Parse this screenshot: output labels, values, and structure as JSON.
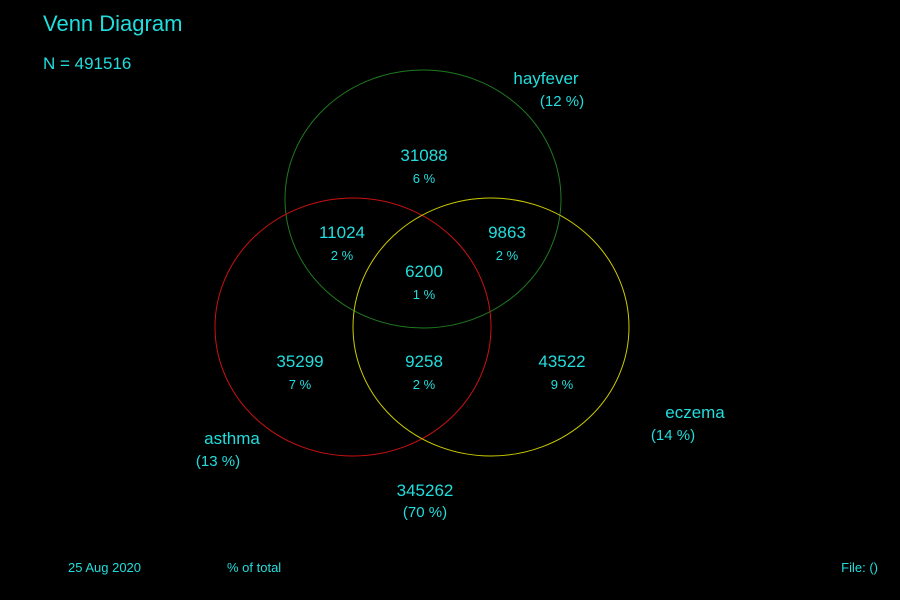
{
  "title": "Venn Diagram",
  "total": "N = 491516",
  "colors": {
    "text": "#22dddd",
    "background": "#000000",
    "hayfever": "#1f7a1f",
    "asthma": "#cc1111",
    "eczema": "#cccc00"
  },
  "sets": {
    "hayfever": {
      "label": "hayfever",
      "pct": "(12 %)"
    },
    "asthma": {
      "label": "asthma",
      "pct": "(13 %)"
    },
    "eczema": {
      "label": "eczema",
      "pct": "(14 %)"
    }
  },
  "regions": {
    "hayfever_only": {
      "count": "31088",
      "pct": "6 %"
    },
    "asthma_hayfever": {
      "count": "11024",
      "pct": "2 %"
    },
    "hayfever_eczema": {
      "count": "9863",
      "pct": "2 %"
    },
    "all_three": {
      "count": "6200",
      "pct": "1 %"
    },
    "asthma_only": {
      "count": "35299",
      "pct": "7 %"
    },
    "asthma_eczema": {
      "count": "9258",
      "pct": "2 %"
    },
    "eczema_only": {
      "count": "43522",
      "pct": "9 %"
    },
    "none": {
      "count": "345262",
      "pct": "(70 %)"
    }
  },
  "footer": {
    "date": "25 Aug 2020",
    "mode": "% of total",
    "file": "File:  ()"
  }
}
